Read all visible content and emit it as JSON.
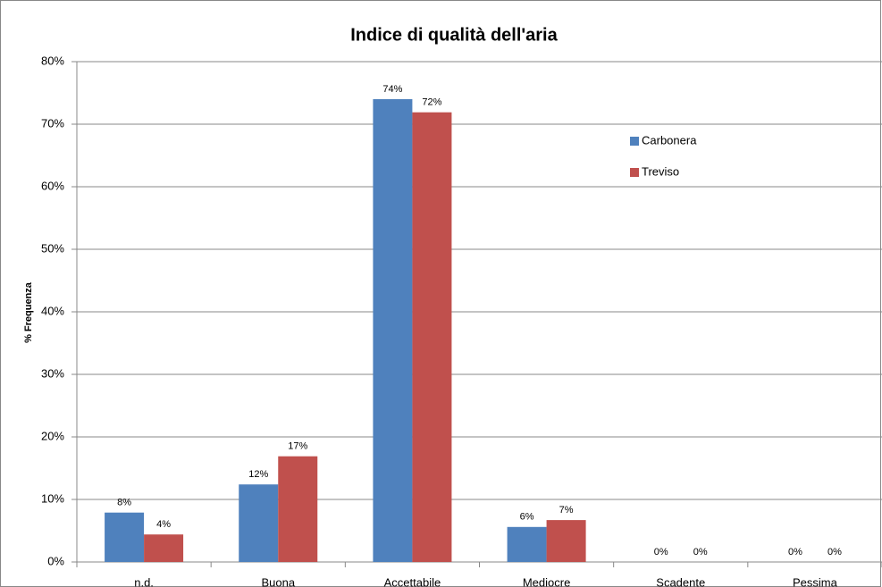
{
  "chart_data": {
    "type": "bar",
    "title": "Indice di qualità dell'aria",
    "y_label": "% Frequenza",
    "categories": [
      "n.d.",
      "Buona",
      "Accettabile",
      "Mediocre",
      "Scadente",
      "Pessima"
    ],
    "series": [
      {
        "name": "Carbonera",
        "color": "#4f81bd",
        "values": [
          7.9,
          12.4,
          74.0,
          5.6,
          0,
          0
        ],
        "value_labels": [
          "8%",
          "12%",
          "74%",
          "6%",
          "0%",
          "0%"
        ]
      },
      {
        "name": "Treviso",
        "color": "#c0504d",
        "values": [
          4.4,
          16.9,
          71.9,
          6.7,
          0,
          0
        ],
        "value_labels": [
          "4%",
          "17%",
          "72%",
          "7%",
          "0%",
          "0%"
        ]
      }
    ],
    "ylim": [
      0,
      80
    ],
    "yticks": [
      {
        "value": 0,
        "label": "0%"
      },
      {
        "value": 10,
        "label": "10%"
      },
      {
        "value": 20,
        "label": "20%"
      },
      {
        "value": 30,
        "label": "30%"
      },
      {
        "value": 40,
        "label": "40%"
      },
      {
        "value": 50,
        "label": "50%"
      },
      {
        "value": 60,
        "label": "60%"
      },
      {
        "value": 70,
        "label": "70%"
      },
      {
        "value": 80,
        "label": "80%"
      }
    ],
    "grid": true,
    "legend": "upper right"
  }
}
